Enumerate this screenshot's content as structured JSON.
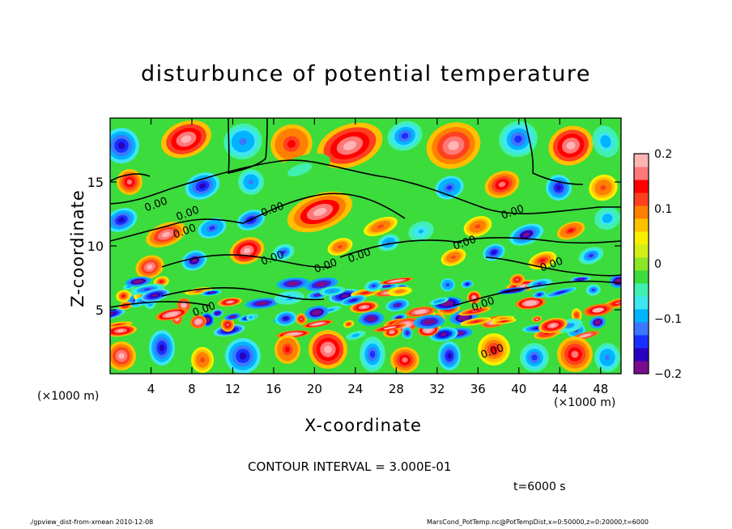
{
  "chart_data": {
    "type": "heatmap",
    "title": "disturbunce of potential temperature",
    "xlabel": "X-coordinate",
    "ylabel": "Z-coordinate",
    "x_unit_left": "(×1000 m)",
    "x_unit_right": "(×1000 m)",
    "xlim": [
      0,
      50
    ],
    "ylim": [
      0,
      20
    ],
    "x_ticks": [
      {
        "value": 4,
        "label": "4"
      },
      {
        "value": 8,
        "label": "8"
      },
      {
        "value": 12,
        "label": "12"
      },
      {
        "value": 16,
        "label": "16"
      },
      {
        "value": 20,
        "label": "20"
      },
      {
        "value": 24,
        "label": "24"
      },
      {
        "value": 28,
        "label": "28"
      },
      {
        "value": 32,
        "label": "32"
      },
      {
        "value": 36,
        "label": "36"
      },
      {
        "value": 40,
        "label": "40"
      },
      {
        "value": 44,
        "label": "44"
      },
      {
        "value": 48,
        "label": "48"
      }
    ],
    "y_ticks": [
      {
        "value": 5,
        "label": "5"
      },
      {
        "value": 10,
        "label": "10"
      },
      {
        "value": 15,
        "label": "15"
      }
    ],
    "colorbar": {
      "range": [
        -0.2,
        0.2
      ],
      "ticks": [
        {
          "value": 0.2,
          "label": "0.2"
        },
        {
          "value": 0.1,
          "label": "0.1"
        },
        {
          "value": 0,
          "label": "0"
        },
        {
          "value": -0.1,
          "label": "−0.1"
        },
        {
          "value": -0.2,
          "label": "−0.2"
        }
      ],
      "colors": [
        "#7a0d8e",
        "#2a00c0",
        "#1830ff",
        "#3c78ff",
        "#00b4ff",
        "#3ee6f0",
        "#40f0b0",
        "#3cdc3c",
        "#8ce628",
        "#d2ee18",
        "#f8f000",
        "#ffc000",
        "#ff8000",
        "#ff4020",
        "#ff0000",
        "#ff7878",
        "#ffb4b4"
      ]
    },
    "contour_labels": [
      {
        "x": 4.6,
        "z": 13.0,
        "text": "0.00"
      },
      {
        "x": 7.4,
        "z": 10.9,
        "text": "0.00"
      },
      {
        "x": 7.7,
        "z": 12.3,
        "text": "0.00"
      },
      {
        "x": 16.0,
        "z": 12.6,
        "text": "0.00"
      },
      {
        "x": 16.0,
        "z": 8.8,
        "text": "0.00"
      },
      {
        "x": 21.2,
        "z": 8.2,
        "text": "0.00"
      },
      {
        "x": 24.5,
        "z": 9.0,
        "text": "0.00"
      },
      {
        "x": 34.8,
        "z": 10.0,
        "text": "0.00"
      },
      {
        "x": 39.5,
        "z": 12.4,
        "text": "0.00"
      },
      {
        "x": 43.3,
        "z": 8.3,
        "text": "0.00"
      },
      {
        "x": 36.6,
        "z": 5.2,
        "text": "0.00"
      },
      {
        "x": 37.5,
        "z": 1.5,
        "text": "0.00"
      },
      {
        "x": 9.3,
        "z": 4.8,
        "text": "0.00"
      }
    ],
    "contour_interval_text": "CONTOUR INTERVAL = 3.000E-01",
    "time_text": "t=6000 s"
  },
  "footer": {
    "left": "./gpview_dist-from-xmean  2010-12-08",
    "right": "MarsCond_PotTemp.nc@PotTempDist,x=0:50000,z=0:20000,t=6000"
  }
}
